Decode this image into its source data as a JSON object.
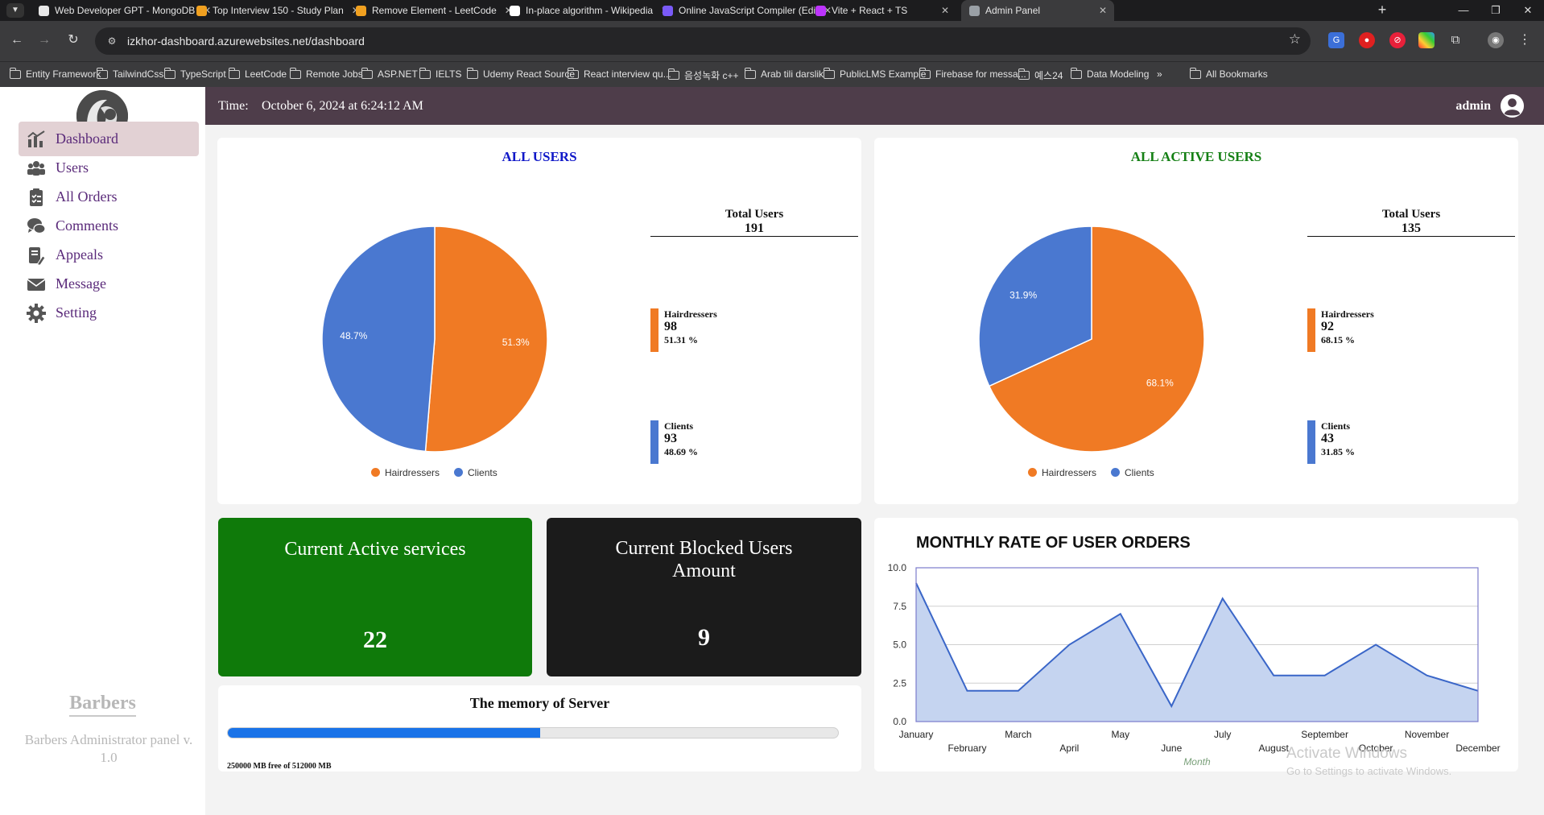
{
  "browser": {
    "tabs": [
      {
        "title": "Web Developer GPT - MongoDB",
        "icon": "chatgpt-icon",
        "color": "#e8e8e8"
      },
      {
        "title": "Top Interview 150 - Study Plan",
        "icon": "leetcode-icon",
        "color": "#f0a020"
      },
      {
        "title": "Remove Element - LeetCode",
        "icon": "leetcode-icon",
        "color": "#f0a020"
      },
      {
        "title": "In-place algorithm - Wikipedia",
        "icon": "wikipedia-icon",
        "color": "#ffffff"
      },
      {
        "title": "Online JavaScript Compiler (Edi",
        "icon": "programiz-icon",
        "color": "#7a5af8"
      },
      {
        "title": "Vite + React + TS",
        "icon": "vite-icon",
        "color": "#bd34fe"
      },
      {
        "title": "Admin Panel",
        "icon": "globe-icon",
        "color": "#9aa0a6",
        "active": true
      }
    ],
    "url": "izkhor-dashboard.azurewebsites.net/dashboard",
    "bookmarks": [
      "Entity Framework",
      "TailwindCss",
      "TypeScript",
      "LeetCode",
      "Remote Jobs",
      "ASP.NET",
      "IELTS",
      "Udemy React Source",
      "React interview qu...",
      "음성녹화 c++",
      "Arab tili darslik",
      "PublicLMS Example",
      "Firebase for messa...",
      "예스24",
      "Data Modeling"
    ],
    "all_bookmarks": "All Bookmarks",
    "more_bookmarks": "»"
  },
  "sidebar": {
    "items": [
      {
        "label": "Dashboard",
        "icon": "chart-icon",
        "active": true
      },
      {
        "label": "Users",
        "icon": "users-icon"
      },
      {
        "label": "All Orders",
        "icon": "clipboard-icon"
      },
      {
        "label": "Comments",
        "icon": "comments-icon"
      },
      {
        "label": "Appeals",
        "icon": "appeals-icon"
      },
      {
        "label": "Message",
        "icon": "envelope-icon"
      },
      {
        "label": "Setting",
        "icon": "gear-icon"
      }
    ],
    "brand": "Barbers",
    "brand_sub": "Barbers Administrator panel v. 1.0"
  },
  "topbar": {
    "time_label": "Time:",
    "time_value": "October 6, 2024 at 6:24:12 AM",
    "user": "admin"
  },
  "colors": {
    "hairdressers": "#f07a24",
    "clients": "#4a78d0",
    "all_users_title": "#1018c8",
    "active_users_title": "#158015"
  },
  "all_users": {
    "title": "ALL USERS",
    "total_label": "Total Users",
    "total": "191",
    "hairdressers": {
      "label": "Hairdressers",
      "count": "98",
      "pct": "51.31 %"
    },
    "clients": {
      "label": "Clients",
      "count": "93",
      "pct": "48.69 %"
    },
    "legend": [
      "Hairdressers",
      "Clients"
    ]
  },
  "active_users": {
    "title": "ALL ACTIVE USERS",
    "total_label": "Total Users",
    "total": "135",
    "hairdressers": {
      "label": "Hairdressers",
      "count": "92",
      "pct": "68.15 %"
    },
    "clients": {
      "label": "Clients",
      "count": "43",
      "pct": "31.85 %"
    },
    "legend": [
      "Hairdressers",
      "Clients"
    ]
  },
  "stats": {
    "active_services": {
      "title": "Current Active services",
      "value": "22"
    },
    "blocked_users": {
      "title": "Current Blocked Users Amount",
      "value": "9"
    }
  },
  "memory": {
    "title": "The memory of Server",
    "used_fraction": 0.512,
    "text": "250000 MB free of 512000 MB"
  },
  "chart_data": [
    {
      "type": "pie",
      "title": "ALL USERS",
      "labels": [
        "Hairdressers",
        "Clients"
      ],
      "values": [
        98,
        93
      ],
      "slice_labels": [
        "51.3%",
        "48.7%"
      ]
    },
    {
      "type": "pie",
      "title": "ALL ACTIVE USERS",
      "labels": [
        "Hairdressers",
        "Clients"
      ],
      "values": [
        92,
        43
      ],
      "slice_labels": [
        "68.1%",
        "31.9%"
      ]
    },
    {
      "type": "area",
      "title": "MONTHLY RATE OF USER ORDERS",
      "xlabel": "Month",
      "ylabel": "",
      "categories": [
        "January",
        "February",
        "March",
        "April",
        "May",
        "June",
        "July",
        "August",
        "September",
        "October",
        "November",
        "December"
      ],
      "values": [
        9,
        2,
        2,
        5,
        7,
        1,
        8,
        3,
        3,
        5,
        3,
        2
      ],
      "ylim": [
        0,
        10
      ],
      "yticks": [
        "0.0",
        "2.5",
        "5.0",
        "7.5",
        "10.0"
      ],
      "grid": true
    }
  ],
  "watermark": {
    "title": "Activate Windows",
    "sub": "Go to Settings to activate Windows."
  }
}
